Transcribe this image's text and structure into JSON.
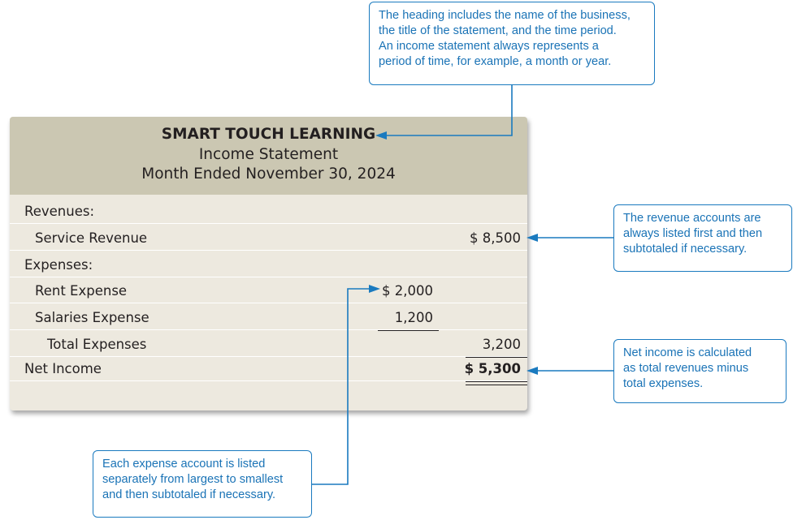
{
  "statement": {
    "company": "SMART TOUCH LEARNING",
    "title": "Income Statement",
    "period": "Month Ended November 30, 2024",
    "rows": [
      {
        "label": "Revenues:",
        "col1": "",
        "col2": ""
      },
      {
        "label": "Service Revenue",
        "col1": "",
        "col2": "$ 8,500"
      },
      {
        "label": "Expenses:",
        "col1": "",
        "col2": ""
      },
      {
        "label": "Rent Expense",
        "col1": "$ 2,000",
        "col2": ""
      },
      {
        "label": "Salaries Expense",
        "col1": "1,200",
        "col2": ""
      },
      {
        "label": "Total Expenses",
        "col1": "",
        "col2": "3,200"
      },
      {
        "label": "Net Income",
        "col1": "",
        "col2": "$ 5,300"
      }
    ]
  },
  "callouts": {
    "heading": [
      "The heading includes the name of the business,",
      "the title of the statement, and the time period.",
      "An income statement always represents a",
      "period of time, for example, a month or year."
    ],
    "revenue": [
      "The revenue accounts are",
      "always listed first and then",
      "subtotaled if necessary."
    ],
    "net_income": [
      "Net income is calculated",
      "as total revenues minus",
      "total expenses."
    ],
    "expense": [
      "Each expense account is listed",
      "separately from largest to smallest",
      "and then subtotaled if necessary."
    ]
  },
  "colors": {
    "callout": "#1a7abf",
    "header_band": "#cbc7b2",
    "body_band": "#ede9df"
  }
}
